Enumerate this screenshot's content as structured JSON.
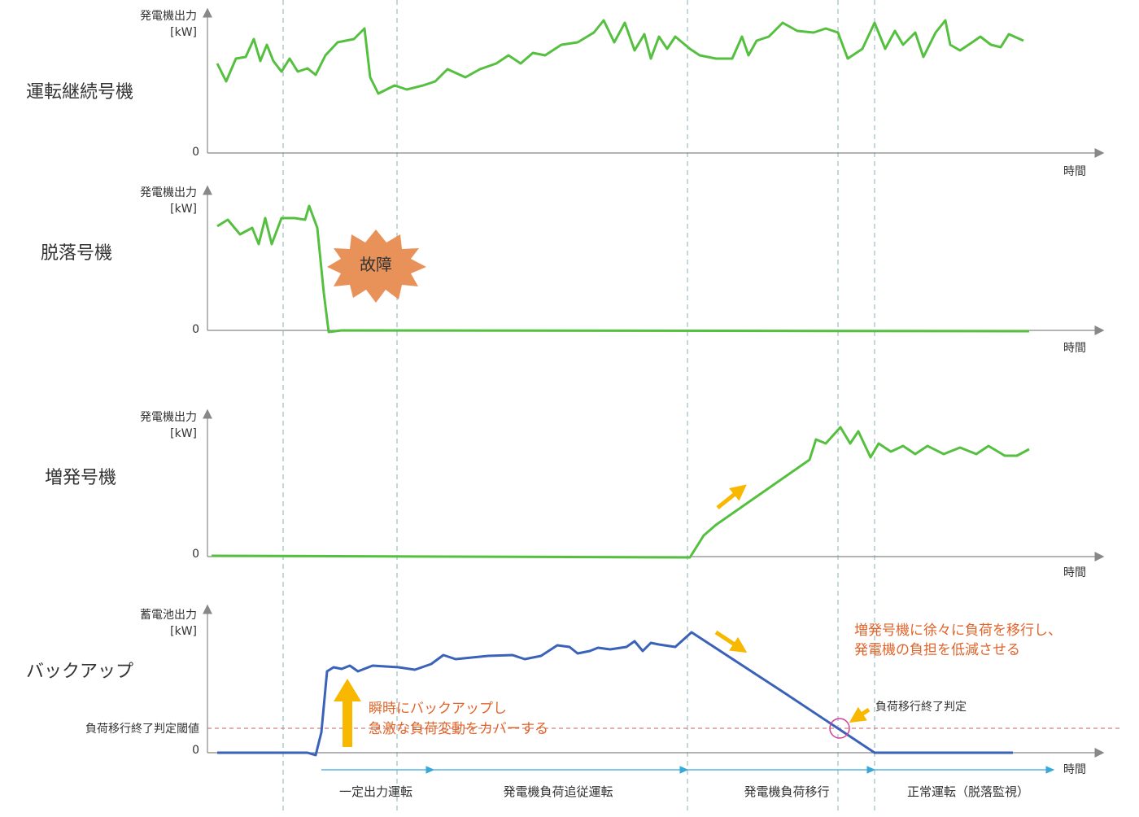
{
  "panels": [
    {
      "label": "運転継続号機",
      "y_axis_label": [
        "発電機出力",
        "[kW]"
      ],
      "zero": "0",
      "x_axis_label": "時間"
    },
    {
      "label": "脱落号機",
      "y_axis_label": [
        "発電機出力",
        "[kW]"
      ],
      "zero": "0",
      "x_axis_label": "時間"
    },
    {
      "label": "増発号機",
      "y_axis_label": [
        "発電機出力",
        "[kW]"
      ],
      "zero": "0",
      "x_axis_label": "時間"
    },
    {
      "label": "バックアップ",
      "y_axis_label": [
        "蓄電池出力",
        "[kW]"
      ],
      "zero": "0",
      "x_axis_label": "時間"
    }
  ],
  "fault_label": "故障",
  "annotations": {
    "backup": [
      "瞬時にバックアップし",
      "急激な負荷変動をカバーする"
    ],
    "transfer": [
      "増発号機に徐々に負荷を移行し、",
      "発電機の負担を低減させる"
    ],
    "judgement": "負荷移行終了判定",
    "threshold": "負荷移行終了判定閾値"
  },
  "phases": [
    "一定出力運転",
    "発電機負荷追従運転",
    "発電機負荷移行",
    "正常運転（脱落監視）"
  ]
}
